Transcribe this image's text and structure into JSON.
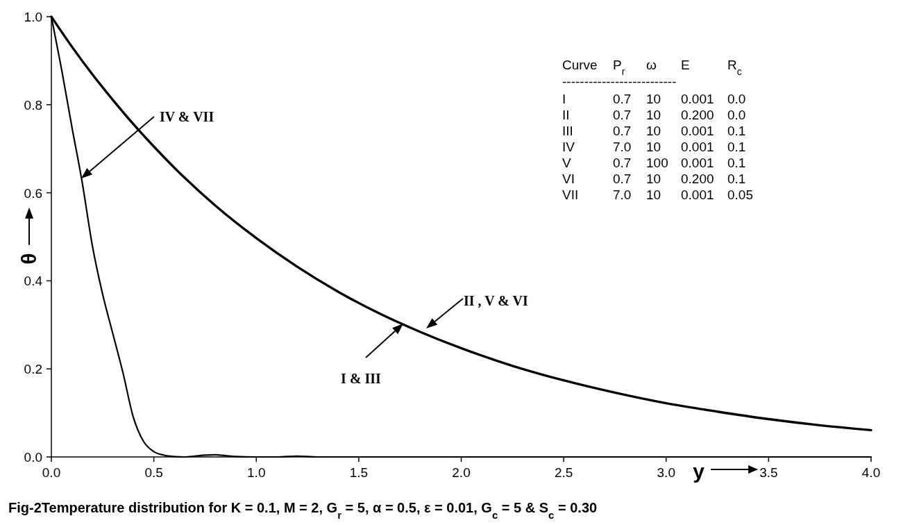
{
  "chart_data": {
    "type": "line",
    "title": "Fig-2Temperature distribution for K = 0.1, M = 2, G$_{r}$ = 5, α = 0.5, ε = 0.01, G$_{c}$ = 5 & S$_{c}$ = 0.30",
    "xlabel": "y",
    "ylabel": "θ",
    "xlim": [
      0,
      4
    ],
    "ylim": [
      0,
      1
    ],
    "xticks": [
      {
        "value": 0,
        "label": "0.0"
      },
      {
        "value": 0.5,
        "label": "0.5"
      },
      {
        "value": 1,
        "label": "1.0"
      },
      {
        "value": 1.5,
        "label": "1.5"
      },
      {
        "value": 2,
        "label": "2.0"
      },
      {
        "value": 2.5,
        "label": "2.5"
      },
      {
        "value": 3,
        "label": "3.0"
      },
      {
        "value": 3.5,
        "label": "3.5"
      },
      {
        "value": 4,
        "label": "4.0"
      }
    ],
    "yticks": [
      {
        "value": 0,
        "label": "0.0"
      },
      {
        "value": 0.2,
        "label": "0.2"
      },
      {
        "value": 0.4,
        "label": "0.4"
      },
      {
        "value": 0.6,
        "label": "0.6"
      },
      {
        "value": 0.8,
        "label": "0.8"
      },
      {
        "value": 1,
        "label": "1.0"
      }
    ],
    "grid": false,
    "marker": "none",
    "line_style": "solid",
    "series": [
      {
        "color": "#000000",
        "x": [
          0,
          0.1,
          0.2,
          0.3,
          0.4,
          0.5,
          0.6,
          0.8,
          1.0,
          1.2,
          1.4,
          1.6,
          1.8,
          2.0,
          2.25,
          2.5,
          2.75,
          3.0,
          3.25,
          3.5,
          3.75,
          4.0
        ],
        "values": [
          1,
          0.932,
          0.869,
          0.811,
          0.756,
          0.705,
          0.657,
          0.571,
          0.497,
          0.432,
          0.375,
          0.326,
          0.284,
          0.247,
          0.207,
          0.174,
          0.146,
          0.122,
          0.103,
          0.086,
          0.072,
          0.061
        ]
      },
      {
        "color": "#000000",
        "x": [
          0,
          0.05,
          0.1,
          0.15,
          0.2,
          0.25,
          0.3,
          0.35,
          0.4,
          0.45,
          0.5,
          0.55,
          0.6,
          0.65,
          0.7,
          0.75,
          0.8,
          0.85,
          0.9,
          1.0,
          1.1,
          1.2,
          1.3,
          1.5,
          2,
          3,
          4
        ],
        "values": [
          1,
          0.88,
          0.75,
          0.625,
          0.48,
          0.37,
          0.28,
          0.19,
          0.09,
          0.035,
          0.012,
          0.004,
          0.001,
          0,
          0.002,
          0.004,
          0.005,
          0.003,
          0.001,
          0,
          0,
          0.002,
          0,
          0,
          0,
          0,
          0
        ]
      }
    ],
    "annotations": [
      "IV & VII",
      "I & III",
      "II , V & VI",
      "Curve P$_{r}$ ω E R$_{c}$",
      "--------------------------",
      "I 0.7 10 0.001 0.0",
      "II 0.7 10 0.200 0.0",
      "III 0.7 10 0.001 0.1",
      "IV 7.0 10 0.001 0.1",
      "V 0.7 100 0.001 0.1",
      "VI 0.7 10 0.200 0.1",
      "VII 7.0 10 0.001 0.05"
    ]
  }
}
